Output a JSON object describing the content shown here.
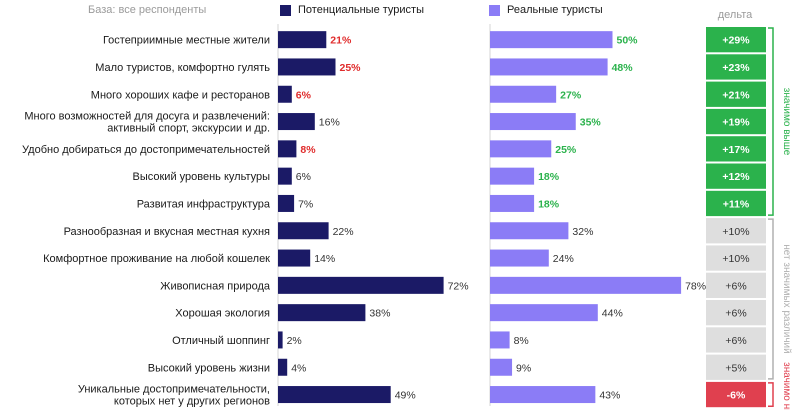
{
  "base_note": "База: все респонденты",
  "delta_header": "дельта",
  "side_labels": {
    "significant": "значимо выше",
    "not_significant": "нет значимых различий",
    "significant_lower": "значимо ниже"
  },
  "colors": {
    "potential": "#1b1a66",
    "real": "#8b7cf6",
    "low_value": "#e02c2c",
    "real_value_green": "#2bb24c",
    "delta_green": "#2bb24c",
    "delta_gray": "#dedede",
    "delta_red": "#e0404f"
  },
  "chart_data": {
    "type": "bar",
    "orientation": "horizontal",
    "categories": [
      [
        "Гостеприимные местные жители"
      ],
      [
        "Мало туристов, комфортно гулять"
      ],
      [
        "Много хороших кафе и ресторанов"
      ],
      [
        "Много возможностей для досуга и развлечений:",
        "активный спорт, экскурсии и др."
      ],
      [
        "Удобно добираться до достопримечательностей"
      ],
      [
        "Высокий уровень культуры"
      ],
      [
        "Развитая инфраструктура"
      ],
      [
        "Разнообразная и вкусная местная кухня"
      ],
      [
        "Комфортное проживание на любой кошелек"
      ],
      [
        "Живописная природа"
      ],
      [
        "Хорошая экология"
      ],
      [
        "Отличный шоппинг"
      ],
      [
        "Высокий уровень жизни"
      ],
      [
        "Уникальные достопримечательности,",
        "которых нет  у других регионов"
      ]
    ],
    "series": [
      {
        "name": "Потенциальные туристы",
        "values": [
          21,
          25,
          6,
          16,
          8,
          6,
          7,
          22,
          14,
          72,
          38,
          2,
          4,
          49
        ],
        "labels": [
          "21%",
          "25%",
          "6%",
          "16%",
          "8%",
          "6%",
          "7%",
          "22%",
          "14%",
          "72%",
          "38%",
          "2%",
          "4%",
          "49%"
        ],
        "label_color": [
          "red",
          "red",
          "red",
          "dark",
          "red",
          "dark",
          "dark",
          "dark",
          "dark",
          "dark",
          "dark",
          "dark",
          "dark",
          "dark"
        ]
      },
      {
        "name": "Реальные туристы",
        "values": [
          50,
          48,
          27,
          35,
          25,
          18,
          18,
          32,
          24,
          78,
          44,
          8,
          9,
          43
        ],
        "labels": [
          "50%",
          "48%",
          "27%",
          "35%",
          "25%",
          "18%",
          "18%",
          "32%",
          "24%",
          "78%",
          "44%",
          "8%",
          "9%",
          "43%"
        ],
        "label_color": [
          "green",
          "green",
          "green",
          "green",
          "green",
          "green",
          "green",
          "dark",
          "dark",
          "dark",
          "dark",
          "dark",
          "dark",
          "dark"
        ]
      }
    ],
    "delta": {
      "labels": [
        "+29%",
        "+23%",
        "+21%",
        "+19%",
        "+17%",
        "+12%",
        "+11%",
        "+10%",
        "+10%",
        "+6%",
        "+6%",
        "+6%",
        "+5%",
        "-6%"
      ],
      "status": [
        "green",
        "green",
        "green",
        "green",
        "green",
        "green",
        "green",
        "gray",
        "gray",
        "gray",
        "gray",
        "gray",
        "gray",
        "red"
      ]
    },
    "xlim": [
      0,
      80
    ]
  }
}
